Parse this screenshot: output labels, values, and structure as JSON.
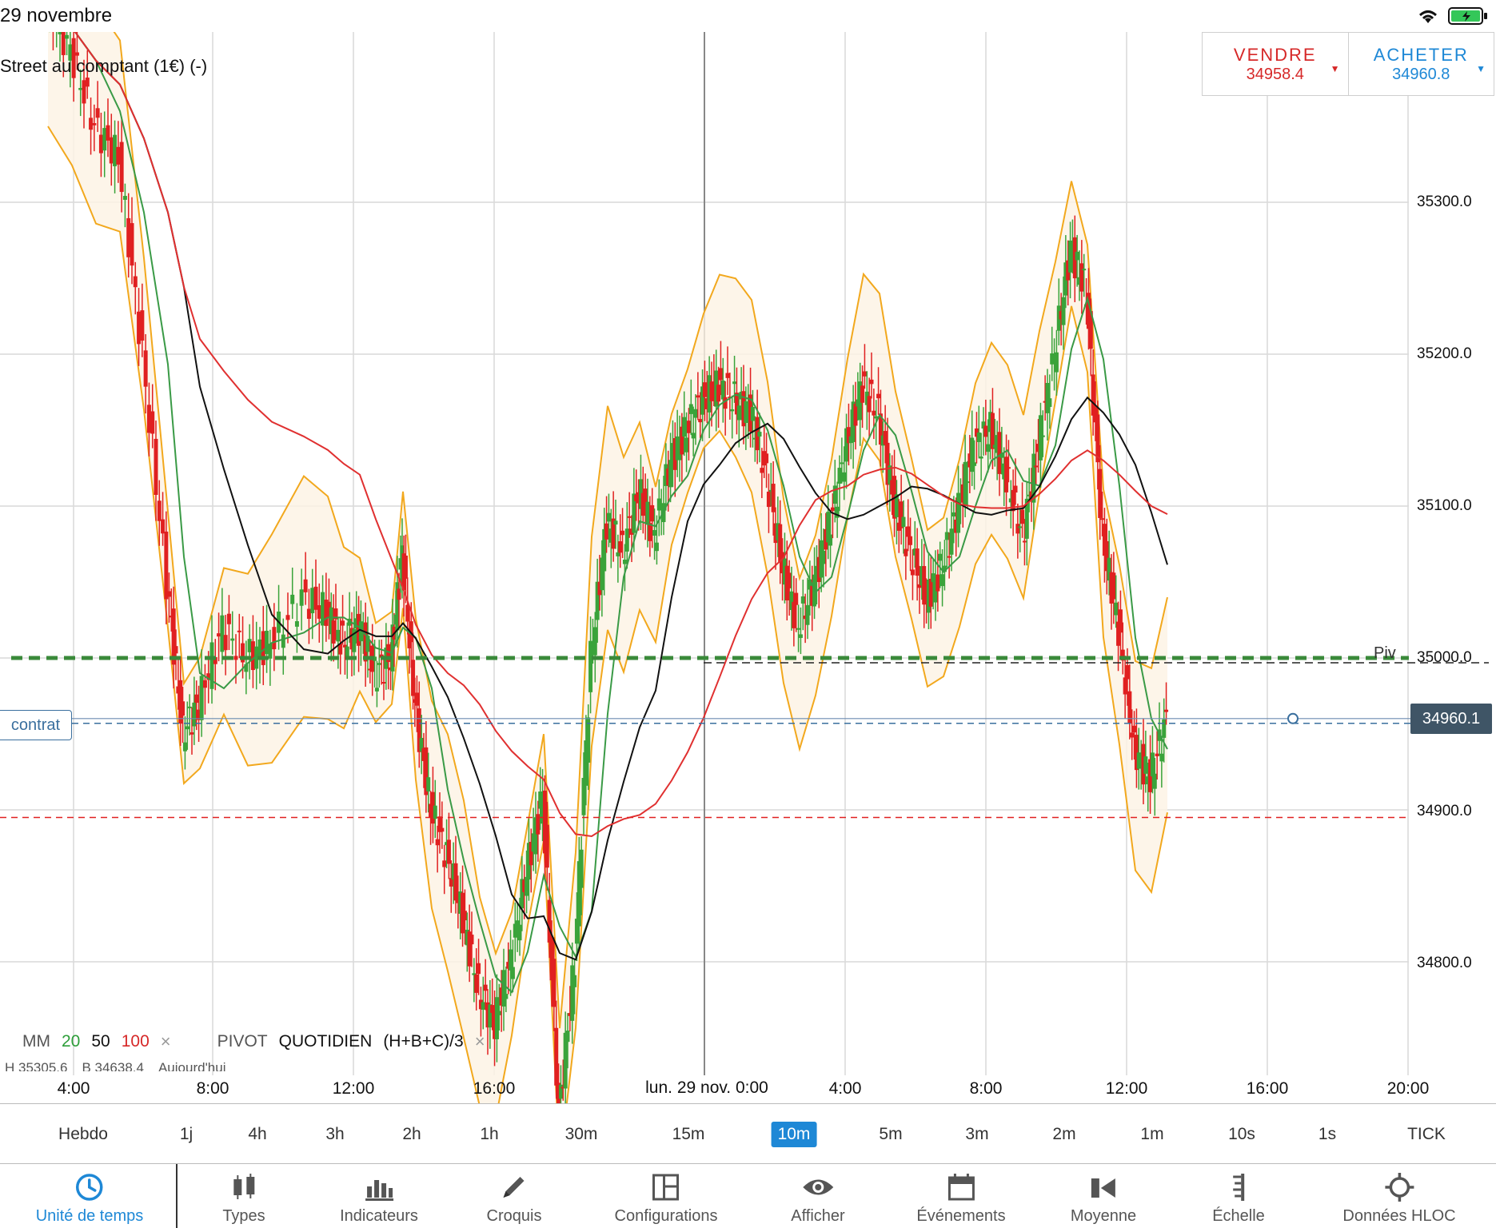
{
  "status": {
    "date": "29 novembre"
  },
  "instrument": {
    "name": "Street au comptant (1€) (-)"
  },
  "trade": {
    "sell_label": "VENDRE",
    "sell_price": "34958.4",
    "buy_label": "ACHETER",
    "buy_price": "34960.8"
  },
  "price_axis": [
    "35300.0",
    "35200.0",
    "35100.0",
    "35000.0",
    "34900.0",
    "34800.0"
  ],
  "current_price": "34960.1",
  "pivot_label": "Piv",
  "contract_label": "contrat",
  "legend": {
    "mm": "MM",
    "mm20": "20",
    "mm50": "50",
    "mm100": "100",
    "close": "×",
    "pivot": "PIVOT",
    "pivot_period": "QUOTIDIEN",
    "pivot_formula": "(H+B+C)/3",
    "sub_high": "H 35305.6",
    "sub_low": "B 34638.4",
    "sub_today": "Aujourd'hui"
  },
  "time_axis": [
    "4:00",
    "8:00",
    "12:00",
    "16:00",
    "4:00",
    "8:00",
    "12:00",
    "16:00",
    "20:00"
  ],
  "date_divider": "lun. 29 nov. 0:00",
  "timeframes": [
    "Hebdo",
    "1j",
    "4h",
    "3h",
    "2h",
    "1h",
    "30m",
    "15m",
    "10m",
    "5m",
    "3m",
    "2m",
    "1m",
    "10s",
    "1s",
    "TICK"
  ],
  "active_timeframe": "10m",
  "toolbar": [
    {
      "label": "Unité de temps",
      "icon": "clock-icon"
    },
    {
      "label": "Types",
      "icon": "candles-icon"
    },
    {
      "label": "Indicateurs",
      "icon": "bar-chart-icon"
    },
    {
      "label": "Croquis",
      "icon": "pencil-icon"
    },
    {
      "label": "Configurations",
      "icon": "layout-icon"
    },
    {
      "label": "Afficher",
      "icon": "eye-icon"
    },
    {
      "label": "Événements",
      "icon": "calendar-icon"
    },
    {
      "label": "Moyenne",
      "icon": "average-icon"
    },
    {
      "label": "Échelle",
      "icon": "scale-icon"
    },
    {
      "label": "Données HLOC",
      "icon": "crosshair-icon"
    }
  ],
  "colors": {
    "up": "#3aa33a",
    "down": "#e02020",
    "bollinger": "#f2a81d",
    "ma20": "#3a9a46",
    "ma50": "#111111",
    "ma100": "#e03030",
    "accent": "#1e88d6"
  },
  "chart_data": {
    "type": "candlestick",
    "ylim": [
      34720,
      35420
    ],
    "x_ticks": [
      "4:00",
      "8:00",
      "12:00",
      "16:00",
      "4:00",
      "8:00",
      "12:00",
      "16:00",
      "20:00"
    ],
    "y_ticks": [
      34800,
      34900,
      35000,
      35100,
      35200,
      35300
    ],
    "pivot": 35000,
    "current": 34960.1,
    "stop_line": 34895,
    "segments": [
      {
        "name": "day1",
        "points": [
          [
            0,
            35430
          ],
          [
            15,
            35400
          ],
          [
            30,
            35350
          ],
          [
            45,
            35330
          ],
          [
            60,
            35200
          ],
          [
            75,
            35050
          ],
          [
            85,
            34950
          ],
          [
            95,
            34970
          ],
          [
            110,
            35020
          ],
          [
            125,
            35000
          ],
          [
            140,
            35010
          ],
          [
            160,
            35040
          ],
          [
            175,
            35030
          ],
          [
            185,
            35010
          ],
          [
            195,
            35020
          ],
          [
            205,
            34990
          ],
          [
            215,
            35000
          ],
          [
            222,
            35070
          ],
          [
            230,
            34970
          ],
          [
            240,
            34900
          ],
          [
            250,
            34870
          ],
          [
            260,
            34830
          ],
          [
            270,
            34780
          ],
          [
            280,
            34760
          ],
          [
            290,
            34800
          ],
          [
            300,
            34860
          ],
          [
            310,
            34910
          ],
          [
            320,
            34700
          ]
        ]
      },
      {
        "name": "day2",
        "points": [
          [
            330,
            34800
          ],
          [
            340,
            35000
          ],
          [
            350,
            35090
          ],
          [
            360,
            35070
          ],
          [
            370,
            35110
          ],
          [
            380,
            35080
          ],
          [
            390,
            35130
          ],
          [
            400,
            35150
          ],
          [
            410,
            35170
          ],
          [
            420,
            35180
          ],
          [
            430,
            35170
          ],
          [
            440,
            35160
          ],
          [
            450,
            35120
          ],
          [
            460,
            35060
          ],
          [
            470,
            35020
          ],
          [
            480,
            35050
          ],
          [
            490,
            35090
          ],
          [
            500,
            35140
          ],
          [
            510,
            35180
          ],
          [
            520,
            35160
          ],
          [
            530,
            35100
          ],
          [
            540,
            35070
          ],
          [
            550,
            35040
          ],
          [
            560,
            35060
          ],
          [
            570,
            35100
          ],
          [
            580,
            35140
          ],
          [
            590,
            35150
          ],
          [
            600,
            35120
          ],
          [
            610,
            35080
          ],
          [
            620,
            35140
          ],
          [
            630,
            35200
          ],
          [
            640,
            35270
          ],
          [
            650,
            35240
          ],
          [
            660,
            35080
          ],
          [
            670,
            35020
          ],
          [
            680,
            34940
          ],
          [
            690,
            34920
          ],
          [
            700,
            34960
          ]
        ]
      }
    ]
  }
}
